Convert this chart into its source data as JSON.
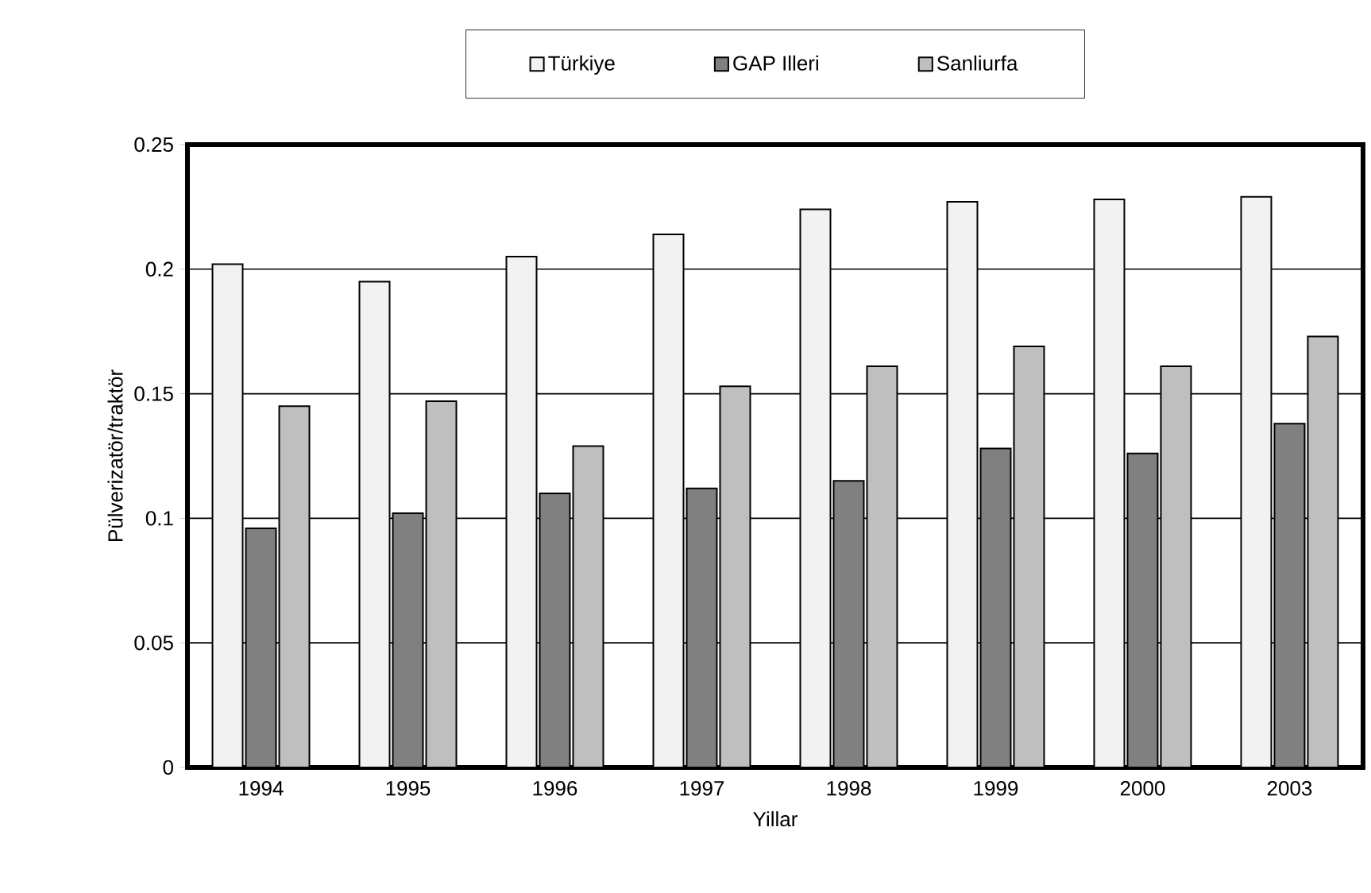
{
  "chart_data": {
    "type": "bar",
    "xlabel": "Yillar",
    "ylabel": "Pülverizatör/traktör",
    "categories": [
      "1994",
      "1995",
      "1996",
      "1997",
      "1998",
      "1999",
      "2000",
      "2003"
    ],
    "series": [
      {
        "name": "Türkiye",
        "color": "#f2f2f2",
        "values": [
          0.202,
          0.195,
          0.205,
          0.214,
          0.224,
          0.227,
          0.228,
          0.229
        ]
      },
      {
        "name": "GAP Illeri",
        "color": "#808080",
        "values": [
          0.096,
          0.102,
          0.11,
          0.112,
          0.115,
          0.128,
          0.126,
          0.138
        ]
      },
      {
        "name": "Sanliurfa",
        "color": "#bfbfbf",
        "values": [
          0.145,
          0.147,
          0.129,
          0.153,
          0.161,
          0.169,
          0.161,
          0.173
        ]
      }
    ],
    "ylim": [
      0,
      0.25
    ],
    "yticks": [
      0,
      0.05,
      0.1,
      0.15,
      0.2,
      0.25
    ],
    "grid": "y",
    "legend": "top"
  }
}
